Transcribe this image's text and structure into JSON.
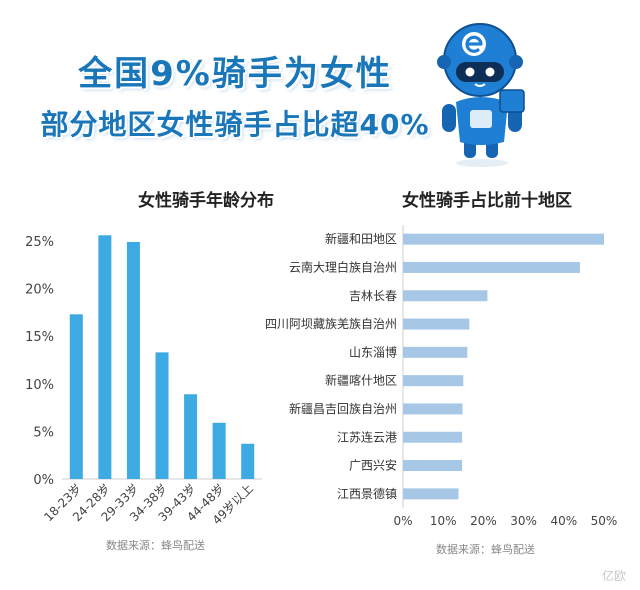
{
  "header": {
    "line1": "全国9%骑手为女性",
    "line2": "部分地区女性骑手占比超40%"
  },
  "watermark": "亿欧",
  "colors": {
    "bar": "#3daae3",
    "hbar": "#a6c8e6",
    "headline": "#1976b9",
    "robot_body": "#1e7fd4"
  },
  "chart_data": [
    {
      "type": "bar",
      "title": "女性骑手年龄分布",
      "categories": [
        "18-23岁",
        "24-28岁",
        "29-33岁",
        "34-38岁",
        "39-43岁",
        "44-48岁",
        "49岁以上"
      ],
      "values": [
        17.3,
        25.6,
        24.9,
        13.3,
        8.9,
        5.9,
        3.7
      ],
      "yticks": [
        "0%",
        "5%",
        "10%",
        "15%",
        "20%",
        "25%"
      ],
      "ylim": [
        0,
        25
      ],
      "source": "数据来源：蜂鸟配送"
    },
    {
      "type": "bar",
      "orientation": "horizontal",
      "title": "女性骑手占比前十地区",
      "categories": [
        "新疆和田地区",
        "云南大理白族自治州",
        "吉林长春",
        "四川阿坝藏族羌族自治州",
        "山东淄博",
        "新疆喀什地区",
        "新疆昌吉回族自治州",
        "江苏连云港",
        "广西兴安",
        "江西景德镇"
      ],
      "values": [
        50,
        44,
        21,
        16.5,
        16,
        15,
        14.8,
        14.7,
        14.7,
        13.8
      ],
      "xticks": [
        "0%",
        "10%",
        "20%",
        "30%",
        "40%",
        "50%"
      ],
      "xlim": [
        0,
        50
      ],
      "source": "数据来源：蜂鸟配送"
    }
  ]
}
